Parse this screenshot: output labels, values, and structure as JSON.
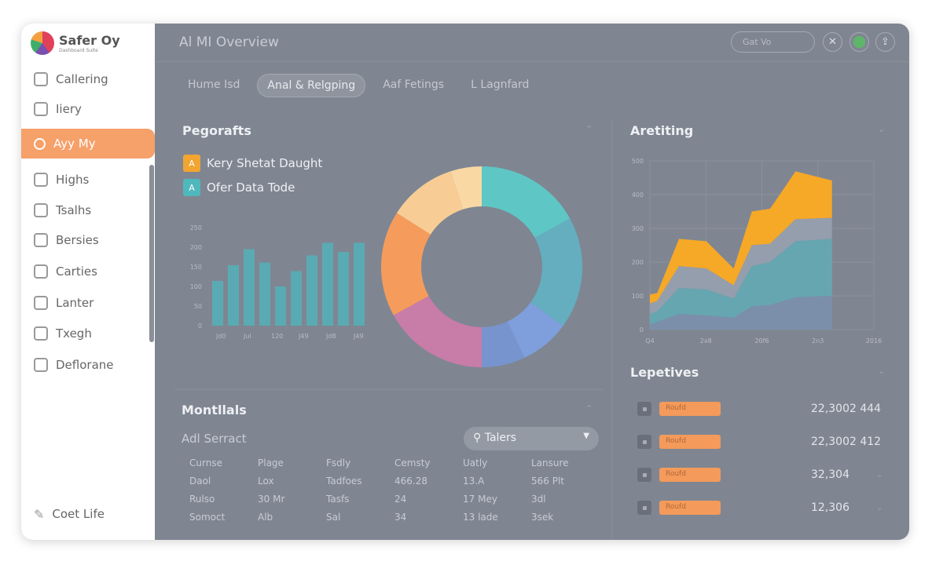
{
  "sidebar": {
    "brand": "Safer Oy",
    "brand_sub": "Dashboard Suite",
    "items": [
      {
        "label": "Callering",
        "icon": "folder-icon"
      },
      {
        "label": "Iiery",
        "icon": "document-icon"
      },
      {
        "label": "Ayy My",
        "icon": "search-icon",
        "active": true
      },
      {
        "label": "Highs",
        "icon": "tablet-icon"
      },
      {
        "label": "Tsalhs",
        "icon": "tree-icon"
      },
      {
        "label": "Bersies",
        "icon": "file-icon"
      },
      {
        "label": "Carties",
        "icon": "link-icon"
      },
      {
        "label": "Lanter",
        "icon": "bell-icon"
      },
      {
        "label": "Txegh",
        "icon": "printer-icon"
      },
      {
        "label": "Deflorane",
        "icon": "gear-icon"
      }
    ],
    "footer": "Coet Life"
  },
  "header": {
    "title": "Al MI Overview",
    "search_placeholder": "Gat Vo",
    "close": "✕",
    "upload": "⇪"
  },
  "tabs": [
    {
      "label": "Hume Isd"
    },
    {
      "label": "Anal & Relgping",
      "active": true
    },
    {
      "label": "Aaf Fetings"
    },
    {
      "label": "L Lagnfard"
    }
  ],
  "panel_left": {
    "title": "Pegorafts",
    "legend": [
      {
        "badge": "A",
        "label": "Kery Shetat Daught",
        "color": "#f2a531"
      },
      {
        "badge": "A",
        "label": "Ofer Data Tode",
        "color": "#4fb8bd"
      }
    ]
  },
  "panel_area": {
    "title": "Aretiting"
  },
  "panel_table": {
    "title": "Montllals",
    "subtitle": "Adl Serract",
    "filter": "Talers",
    "columns": [
      "Curnse",
      "Plage",
      "Fsdly",
      "Cemsty",
      "Uatly",
      "Lansure"
    ],
    "rows": [
      [
        "Daol",
        "Lox",
        "Tadfoes",
        "466.28",
        "13.A",
        "566 Plt"
      ],
      [
        "Rulso",
        "30 Mr",
        "Tasfs",
        "24",
        "17 Mey",
        "3dl"
      ],
      [
        "Somoct",
        "Alb",
        "Sal",
        "34",
        "13 lade",
        "3sek"
      ]
    ]
  },
  "panel_list": {
    "title": "Lepetives",
    "rows": [
      {
        "tag": "Roufd",
        "value": "22,3002 444"
      },
      {
        "tag": "Roufd",
        "value": "22,3002 412"
      },
      {
        "tag": "Roufd",
        "value": "32,304"
      },
      {
        "tag": "Roufd",
        "value": "12,306"
      }
    ]
  },
  "chart_data": [
    {
      "type": "bar",
      "title": "",
      "categories": [
        "1",
        "2",
        "3",
        "4",
        "5",
        "6",
        "7",
        "8",
        "9",
        "10"
      ],
      "values": [
        114,
        154,
        195,
        161,
        100,
        139,
        179,
        211,
        188,
        211
      ],
      "ylim": [
        0,
        250
      ],
      "yticks": [
        "0",
        "50",
        "100",
        "150",
        "200",
        "250"
      ],
      "xticks": [
        "Jd0",
        "Jul",
        "120",
        "J49",
        "Jd8",
        "J49"
      ],
      "color": "#5aaab3"
    },
    {
      "type": "pie",
      "donut": true,
      "values": [
        17,
        18,
        8,
        7,
        17,
        17,
        11,
        5
      ],
      "colors": [
        "#5ec7c5",
        "#64aec0",
        "#7e9fdc",
        "#7894cf",
        "#c87ca8",
        "#f59c5c",
        "#f7cd95",
        "#f9d8a4"
      ]
    },
    {
      "type": "area",
      "stacked": true,
      "title": "Aretiting",
      "x": [
        0,
        4,
        16,
        31,
        46,
        56,
        66,
        80,
        100
      ],
      "xlim": [
        0,
        123
      ],
      "ylim": [
        0,
        500
      ],
      "yticks": [
        "0",
        "100",
        "200",
        "300",
        "400",
        "500"
      ],
      "xticks": [
        "Q4",
        "2x8",
        "20f6",
        "2n3",
        "2016"
      ],
      "series": [
        {
          "name": "base",
          "color": "#7b8fab",
          "values": [
            15,
            23,
            46,
            42,
            35,
            69,
            73,
            96,
            100
          ]
        },
        {
          "name": "teal",
          "color": "#66a6b0",
          "values": [
            31,
            31,
            77,
            77,
            57,
            119,
            127,
            166,
            169
          ]
        },
        {
          "name": "gray",
          "color": "#949eac",
          "values": [
            31,
            31,
            65,
            62,
            39,
            62,
            54,
            65,
            62
          ]
        },
        {
          "name": "orange",
          "color": "#f6a827",
          "values": [
            27,
            23,
            81,
            81,
            50,
            100,
            104,
            142,
            111
          ]
        }
      ]
    }
  ]
}
